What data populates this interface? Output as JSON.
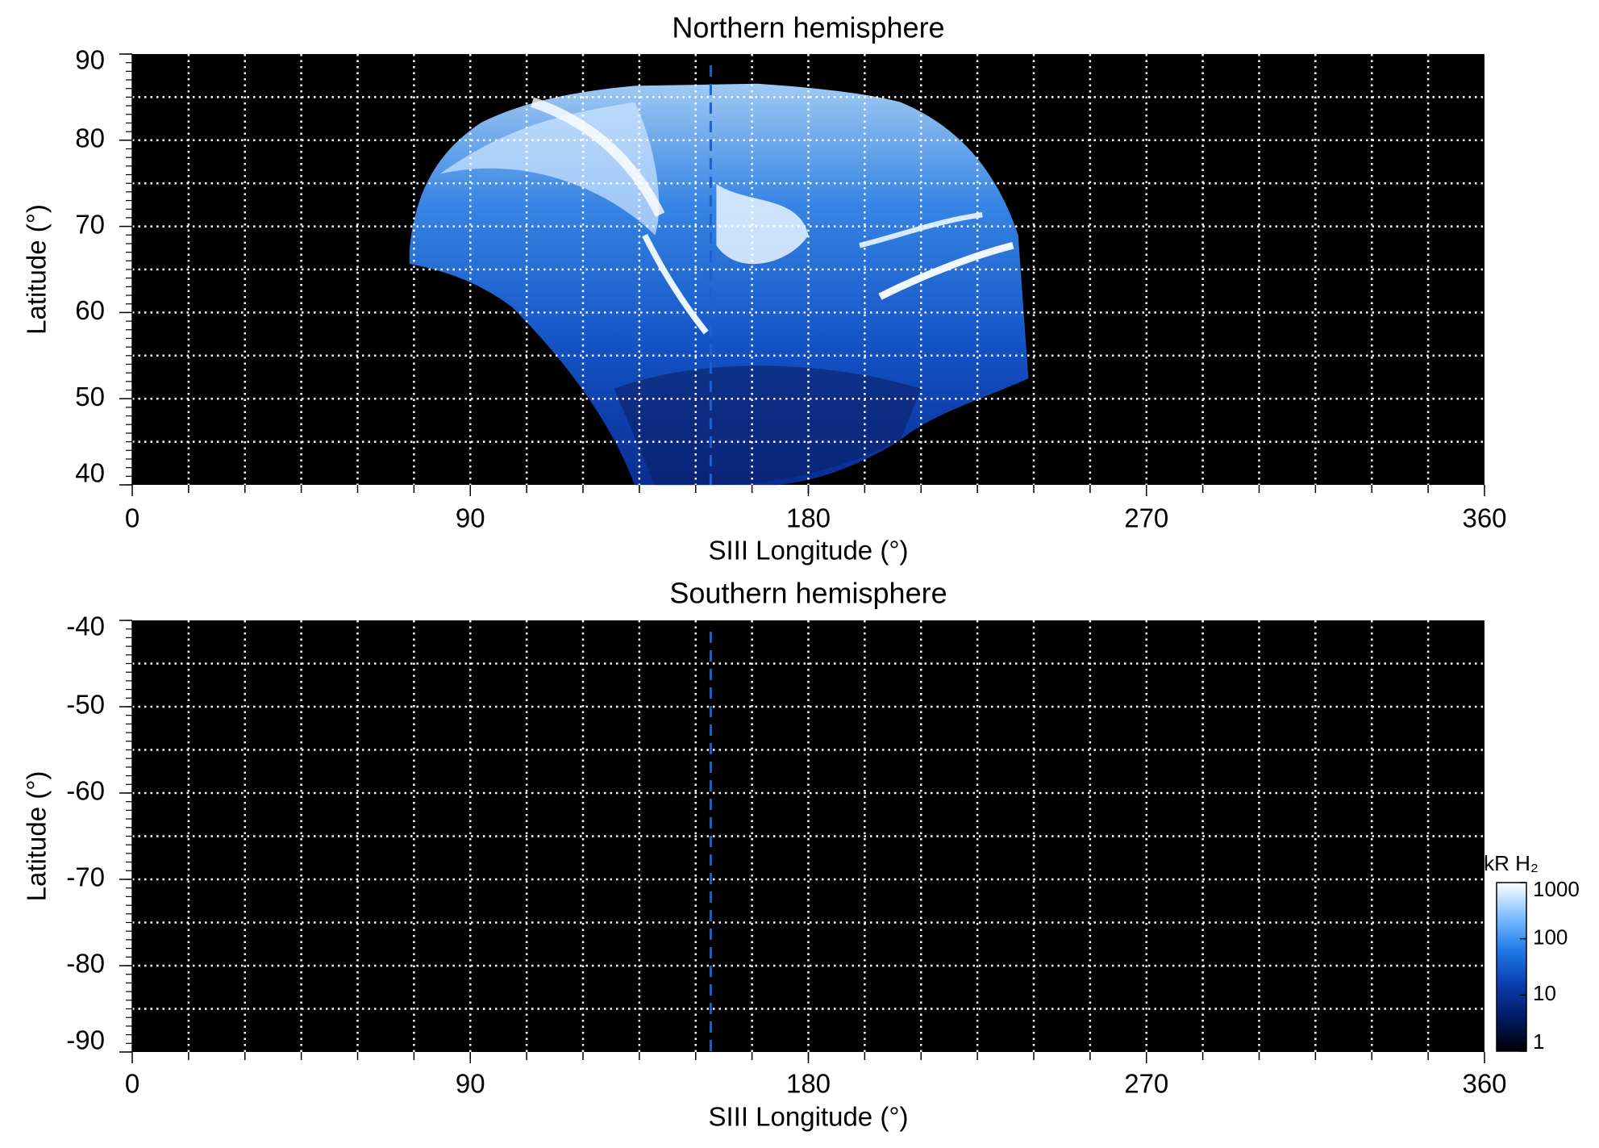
{
  "chart_data": [
    {
      "type": "heatmap",
      "title": "Northern hemisphere",
      "x_label": "SIII Longitude (°)",
      "y_label": "Latitude (°)",
      "xlim": [
        0,
        360
      ],
      "xticks": [
        0,
        90,
        180,
        270,
        360
      ],
      "ylim": [
        40,
        90
      ],
      "yticks": [
        40,
        50,
        60,
        70,
        80,
        90
      ],
      "grid": true,
      "grid_color": "#ffffff",
      "xgrid_step": 15,
      "ygrid_step": 5,
      "background": "#000000",
      "reference_line": {
        "x": 154,
        "color": "#1f5fcf",
        "style": "dashed"
      }
    },
    {
      "type": "heatmap",
      "title": "Southern hemisphere",
      "x_label": "SIII Longitude (°)",
      "y_label": "Latitude (°)",
      "xlim": [
        0,
        360
      ],
      "xticks": [
        0,
        90,
        180,
        270,
        360
      ],
      "ylim": [
        -90,
        -40
      ],
      "yticks": [
        -90,
        -80,
        -70,
        -60,
        -50,
        -40
      ],
      "grid": true,
      "grid_color": "#ffffff",
      "xgrid_step": 15,
      "ygrid_step": 5,
      "background": "#000000",
      "reference_line": {
        "x": 154,
        "color": "#1f5fcf",
        "style": "dashed"
      },
      "colorbar": {
        "label": "kR H₂",
        "log": true,
        "lim": [
          1,
          1000
        ],
        "ticks": [
          1,
          10,
          100,
          1000
        ],
        "colors": [
          "#000000",
          "#001a66",
          "#0a3fb0",
          "#1f7ae8",
          "#7fc0ff",
          "#ffffff"
        ]
      }
    }
  ]
}
